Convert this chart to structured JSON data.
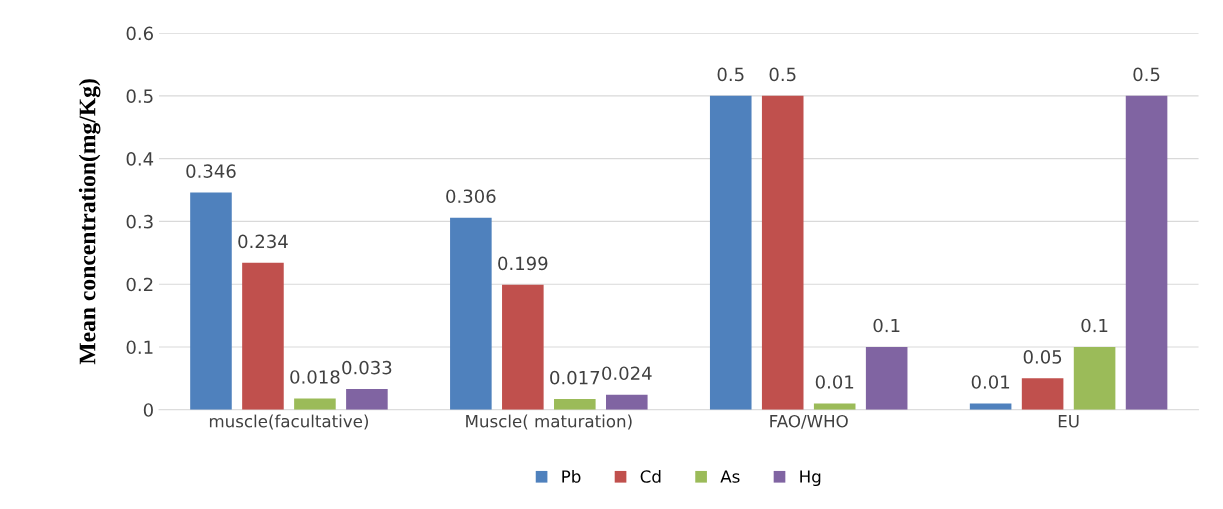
{
  "chart_data": {
    "type": "bar",
    "ylabel": "Mean concentration(mg/Kg)",
    "categories": [
      "muscle(facultative)",
      "Muscle( maturation)",
      "FAO/WHO",
      "EU"
    ],
    "series": [
      {
        "name": "Pb",
        "color": "#4f81bd",
        "values": [
          0.346,
          0.306,
          0.5,
          0.01
        ]
      },
      {
        "name": "Cd",
        "color": "#c0504d",
        "values": [
          0.234,
          0.199,
          0.5,
          0.05
        ]
      },
      {
        "name": "As",
        "color": "#9bbb59",
        "values": [
          0.018,
          0.017,
          0.01,
          0.1
        ]
      },
      {
        "name": "Hg",
        "color": "#8064a2",
        "values": [
          0.033,
          0.024,
          0.1,
          0.5
        ]
      }
    ],
    "ylim": [
      0,
      0.6
    ],
    "yticks": [
      0,
      0.1,
      0.2,
      0.3,
      0.4,
      0.5,
      0.6
    ],
    "grid": "y",
    "legend": "bottom",
    "data_labels": true
  }
}
